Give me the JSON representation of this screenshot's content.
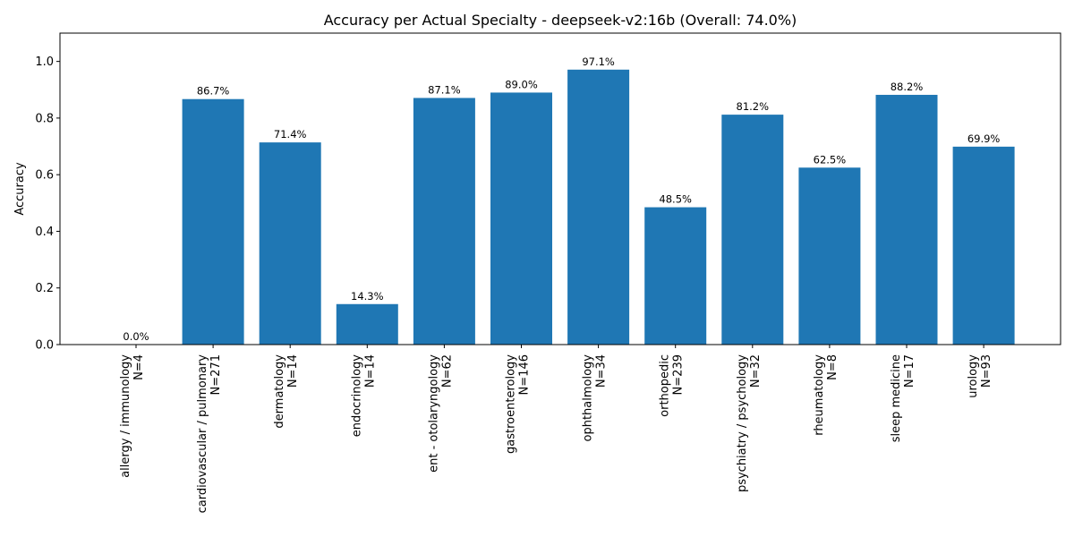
{
  "chart_data": {
    "type": "bar",
    "title": "Accuracy per Actual Specialty - deepseek-v2:16b (Overall: 74.0%)",
    "xlabel": "",
    "ylabel": "Accuracy",
    "ylim": [
      0,
      1.1
    ],
    "yticks": [
      "0.0",
      "0.2",
      "0.4",
      "0.6",
      "0.8",
      "1.0"
    ],
    "grid": false,
    "bar_color": "#1f77b4",
    "categories": [
      {
        "name": "allergy / immunology",
        "n": "N=4"
      },
      {
        "name": "cardiovascular / pulmonary",
        "n": "N=271"
      },
      {
        "name": "dermatology",
        "n": "N=14"
      },
      {
        "name": "endocrinology",
        "n": "N=14"
      },
      {
        "name": "ent - otolaryngology",
        "n": "N=62"
      },
      {
        "name": "gastroenterology",
        "n": "N=146"
      },
      {
        "name": "ophthalmology",
        "n": "N=34"
      },
      {
        "name": "orthopedic",
        "n": "N=239"
      },
      {
        "name": "psychiatry / psychology",
        "n": "N=32"
      },
      {
        "name": "rheumatology",
        "n": "N=8"
      },
      {
        "name": "sleep medicine",
        "n": "N=17"
      },
      {
        "name": "urology",
        "n": "N=93"
      }
    ],
    "values": [
      0.0,
      0.867,
      0.714,
      0.143,
      0.871,
      0.89,
      0.971,
      0.485,
      0.812,
      0.625,
      0.882,
      0.699
    ],
    "value_labels": [
      "0.0%",
      "86.7%",
      "71.4%",
      "14.3%",
      "87.1%",
      "89.0%",
      "97.1%",
      "48.5%",
      "81.2%",
      "62.5%",
      "88.2%",
      "69.9%"
    ]
  }
}
